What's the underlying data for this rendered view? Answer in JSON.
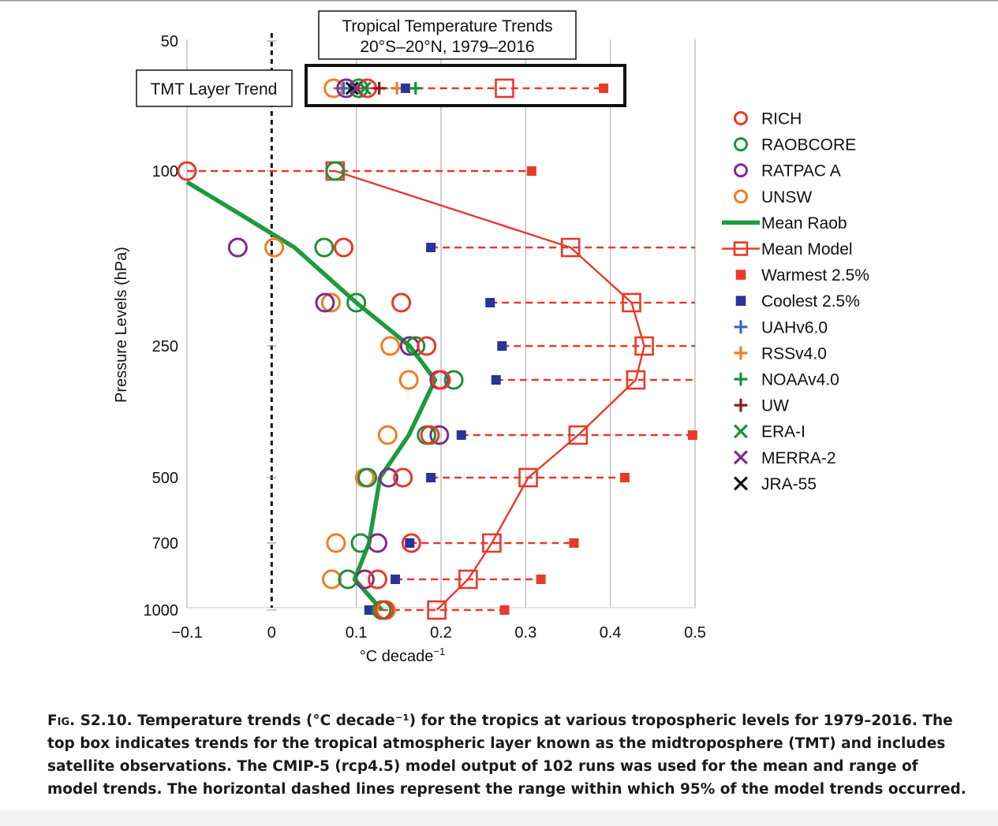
{
  "chart_data": {
    "type": "scatter",
    "title": "Tropical Temperature Trends",
    "subtitle": "20°S–20°N, 1979–2016",
    "xlabel": "°C decade",
    "xlabel_sup": "−1",
    "ylabel": "Pressure Levels (hPa)",
    "xlim": [
      -0.1,
      0.5
    ],
    "x_ticks": [
      -0.1,
      0,
      0.1,
      0.2,
      0.3,
      0.4,
      0.5
    ],
    "x_tick_labels": [
      "−0.1",
      "0",
      "0.1",
      "0.2",
      "0.3",
      "0.4",
      "0.5"
    ],
    "y_tick_labels": [
      {
        "label": "50",
        "level": 50
      },
      {
        "label": "100",
        "level": 100
      },
      {
        "label": "250",
        "level": 250
      },
      {
        "label": "500",
        "level": 500
      },
      {
        "label": "700",
        "level": 700
      },
      {
        "label": "1000",
        "level": 1000
      }
    ],
    "levels": [
      100,
      150,
      200,
      250,
      300,
      400,
      500,
      700,
      850,
      1000
    ],
    "grid": "vertical",
    "zero_line": "dashed",
    "legend_position": "right",
    "series": [
      {
        "name": "RICH",
        "marker": "circle",
        "color": "#e8392b",
        "points": [
          {
            "level": 100,
            "x": -0.1
          },
          {
            "level": 150,
            "x": 0.085
          },
          {
            "level": 200,
            "x": 0.153
          },
          {
            "level": 250,
            "x": 0.183
          },
          {
            "level": 300,
            "x": 0.2
          },
          {
            "level": 400,
            "x": 0.187
          },
          {
            "level": 500,
            "x": 0.155
          },
          {
            "level": 700,
            "x": 0.165
          },
          {
            "level": 850,
            "x": 0.125
          },
          {
            "level": 1000,
            "x": 0.133
          }
        ]
      },
      {
        "name": "RAOBCORE",
        "marker": "circle",
        "color": "#1f8f3a",
        "points": [
          {
            "level": 100,
            "x": 0.075
          },
          {
            "level": 150,
            "x": 0.062
          },
          {
            "level": 200,
            "x": 0.1
          },
          {
            "level": 250,
            "x": 0.17
          },
          {
            "level": 300,
            "x": 0.215
          },
          {
            "level": 400,
            "x": 0.183
          },
          {
            "level": 500,
            "x": 0.113
          },
          {
            "level": 700,
            "x": 0.105
          },
          {
            "level": 850,
            "x": 0.09
          },
          {
            "level": 1000,
            "x": 0.13
          }
        ]
      },
      {
        "name": "RATPAC A",
        "marker": "circle",
        "color": "#7b2d8b",
        "points": [
          {
            "level": 150,
            "x": -0.04
          },
          {
            "level": 200,
            "x": 0.063
          },
          {
            "level": 250,
            "x": 0.163
          },
          {
            "level": 300,
            "x": 0.198
          },
          {
            "level": 400,
            "x": 0.198
          },
          {
            "level": 500,
            "x": 0.138
          },
          {
            "level": 700,
            "x": 0.125
          },
          {
            "level": 850,
            "x": 0.11
          }
        ]
      },
      {
        "name": "UNSW",
        "marker": "circle",
        "color": "#f07d24",
        "points": [
          {
            "level": 100,
            "x": 0.075
          },
          {
            "level": 150,
            "x": 0.003
          },
          {
            "level": 200,
            "x": 0.07
          },
          {
            "level": 250,
            "x": 0.14
          },
          {
            "level": 300,
            "x": 0.162
          },
          {
            "level": 400,
            "x": 0.137
          },
          {
            "level": 500,
            "x": 0.11
          },
          {
            "level": 700,
            "x": 0.076
          },
          {
            "level": 850,
            "x": 0.071
          },
          {
            "level": 1000,
            "x": 0.135
          }
        ]
      },
      {
        "name": "Mean Raob",
        "marker": "line",
        "color": "#1f9a3e",
        "points": [
          {
            "level": 105,
            "x": -0.1
          },
          {
            "level": 125,
            "x": -0.04
          },
          {
            "level": 150,
            "x": 0.027
          },
          {
            "level": 200,
            "x": 0.1
          },
          {
            "level": 250,
            "x": 0.163
          },
          {
            "level": 300,
            "x": 0.193
          },
          {
            "level": 400,
            "x": 0.162
          },
          {
            "level": 500,
            "x": 0.128
          },
          {
            "level": 700,
            "x": 0.115
          },
          {
            "level": 850,
            "x": 0.098
          },
          {
            "level": 1000,
            "x": 0.13
          }
        ]
      },
      {
        "name": "Mean Model",
        "marker": "open-square-line",
        "color": "#e8392b",
        "points": [
          {
            "level": 100,
            "x": 0.075
          },
          {
            "level": 150,
            "x": 0.353
          },
          {
            "level": 200,
            "x": 0.425
          },
          {
            "level": 250,
            "x": 0.44
          },
          {
            "level": 300,
            "x": 0.43
          },
          {
            "level": 400,
            "x": 0.362
          },
          {
            "level": 500,
            "x": 0.303
          },
          {
            "level": 700,
            "x": 0.26
          },
          {
            "level": 850,
            "x": 0.232
          },
          {
            "level": 1000,
            "x": 0.195
          }
        ]
      },
      {
        "name": "Warmest 2.5%",
        "marker": "filled-square",
        "color": "#e8392b",
        "points": [
          {
            "level": 100,
            "x": 0.307
          },
          {
            "level": 150,
            "x": 0.5
          },
          {
            "level": 200,
            "x": 0.5
          },
          {
            "level": 250,
            "x": 0.5
          },
          {
            "level": 300,
            "x": 0.5
          },
          {
            "level": 400,
            "x": 0.497
          },
          {
            "level": 500,
            "x": 0.417
          },
          {
            "level": 700,
            "x": 0.357
          },
          {
            "level": 850,
            "x": 0.318
          },
          {
            "level": 1000,
            "x": 0.275
          }
        ]
      },
      {
        "name": "Coolest 2.5%",
        "marker": "filled-square",
        "color": "#27349b",
        "points": [
          {
            "level": 100,
            "x": -0.1
          },
          {
            "level": 150,
            "x": 0.188
          },
          {
            "level": 200,
            "x": 0.258
          },
          {
            "level": 250,
            "x": 0.272
          },
          {
            "level": 300,
            "x": 0.265
          },
          {
            "level": 400,
            "x": 0.224
          },
          {
            "level": 500,
            "x": 0.188
          },
          {
            "level": 700,
            "x": 0.163
          },
          {
            "level": 850,
            "x": 0.146
          },
          {
            "level": 1000,
            "x": 0.115
          }
        ]
      },
      {
        "name": "UAHv6.0",
        "marker": "plus",
        "color": "#4065c0",
        "points": []
      },
      {
        "name": "RSSv4.0",
        "marker": "plus",
        "color": "#f07d24",
        "points": []
      },
      {
        "name": "NOAAv4.0",
        "marker": "plus",
        "color": "#1f8f3a",
        "points": []
      },
      {
        "name": "UW",
        "marker": "plus",
        "color": "#8a1f1f",
        "points": []
      },
      {
        "name": "ERA-I",
        "marker": "x",
        "color": "#1f8f3a",
        "points": []
      },
      {
        "name": "MERRA-2",
        "marker": "x",
        "color": "#7b2d8b",
        "points": []
      },
      {
        "name": "JRA-55",
        "marker": "x",
        "color": "#111111",
        "points": []
      }
    ],
    "tmt_layer": {
      "label": "TMT Layer Trend",
      "points": [
        {
          "series": "UNSW",
          "x": 0.073
        },
        {
          "series": "RATPAC A",
          "x": 0.088
        },
        {
          "series": "UAHv6.0",
          "x": 0.085
        },
        {
          "series": "RAOBCORE",
          "x": 0.103
        },
        {
          "series": "RICH",
          "x": 0.113
        },
        {
          "series": "JRA-55",
          "x": 0.095
        },
        {
          "series": "MERRA-2",
          "x": 0.1
        },
        {
          "series": "ERA-I",
          "x": 0.11
        },
        {
          "series": "UW",
          "x": 0.127
        },
        {
          "series": "RSSv4.0",
          "x": 0.148
        },
        {
          "series": "Coolest 2.5%",
          "x": 0.158
        },
        {
          "series": "NOAAv4.0",
          "x": 0.17
        },
        {
          "series": "Mean Model",
          "x": 0.275
        },
        {
          "series": "Warmest 2.5%",
          "x": 0.392
        }
      ]
    }
  },
  "caption": {
    "lead": "Fig. S2.10.",
    "text": "Temperature trends (°C decade⁻¹) for the tropics at various tropospheric levels for 1979–2016. The top box indicates trends for the tropical atmospheric layer known as the midtroposphere (TMT) and includes satellite observations.  The CMIP-5 (rcp4.5) model output of 102 runs was used for the mean and range of model trends.  The horizontal dashed lines represent the range within which 95% of the model trends occurred."
  }
}
